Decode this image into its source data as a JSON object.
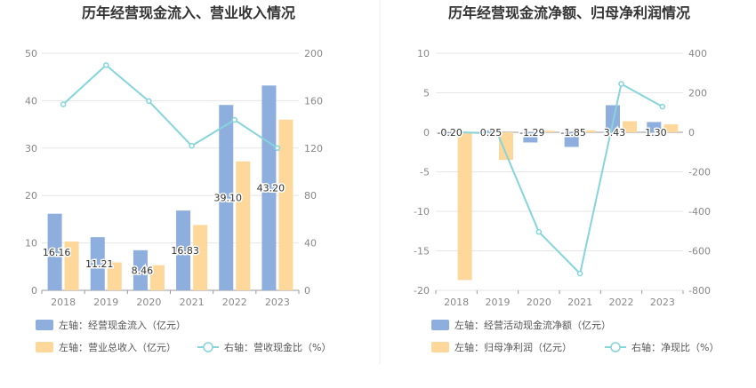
{
  "chart_data": [
    {
      "type": "bar",
      "title": "历年经营现金流入、营业收入情况",
      "categories": [
        "2018",
        "2019",
        "2020",
        "2021",
        "2022",
        "2023"
      ],
      "left_axis": {
        "min": 0,
        "max": 50,
        "ticks": [
          0,
          10,
          20,
          30,
          40,
          50
        ]
      },
      "right_axis": {
        "min": 0,
        "max": 200,
        "ticks": [
          0,
          40,
          80,
          120,
          160,
          200
        ]
      },
      "series": [
        {
          "name": "左轴：经营现金流入（亿元）",
          "axis": "left",
          "kind": "bar",
          "color": "#8eaedd",
          "values": [
            16.16,
            11.21,
            8.46,
            16.83,
            39.1,
            43.2
          ],
          "labels": [
            "16.16",
            "11.21",
            "8.46",
            "16.83",
            "39.10",
            "43.20"
          ]
        },
        {
          "name": "左轴：营业总收入（亿元）",
          "axis": "left",
          "kind": "bar",
          "color": "#fdd89a",
          "values": [
            10.3,
            5.9,
            5.3,
            13.8,
            27.2,
            36.0
          ]
        },
        {
          "name": "右轴：营收现金比（%）",
          "axis": "right",
          "kind": "line",
          "color": "#86d4dc",
          "values": [
            156.9,
            190.0,
            159.6,
            121.9,
            143.8,
            120.0
          ]
        }
      ]
    },
    {
      "type": "bar",
      "title": "历年经营现金流净额、归母净利润情况",
      "categories": [
        "2018",
        "2019",
        "2020",
        "2021",
        "2022",
        "2023"
      ],
      "left_axis": {
        "min": -20,
        "max": 10,
        "ticks": [
          -20,
          -15,
          -10,
          -5,
          0,
          5,
          10
        ]
      },
      "right_axis": {
        "min": -800,
        "max": 400,
        "ticks": [
          -800,
          -600,
          -400,
          -200,
          0,
          200,
          400
        ]
      },
      "series": [
        {
          "name": "左轴：经营活动现金流净额（亿元）",
          "axis": "left",
          "kind": "bar",
          "color": "#8eaedd",
          "values": [
            -0.2,
            0.25,
            -1.29,
            -1.85,
            3.43,
            1.3
          ],
          "labels": [
            "-0.20",
            "0.25",
            "-1.29",
            "-1.85",
            "3.43",
            "1.30"
          ]
        },
        {
          "name": "左轴：归母净利润（亿元）",
          "axis": "left",
          "kind": "bar",
          "color": "#fdd89a",
          "values": [
            -18.7,
            -3.5,
            0.2,
            0.25,
            1.4,
            1.0
          ]
        },
        {
          "name": "右轴：净现比（%）",
          "axis": "right",
          "kind": "line",
          "color": "#86d4dc",
          "values": [
            1.1,
            -7.1,
            -504.0,
            -715.0,
            245.0,
            130.0
          ]
        }
      ]
    }
  ]
}
